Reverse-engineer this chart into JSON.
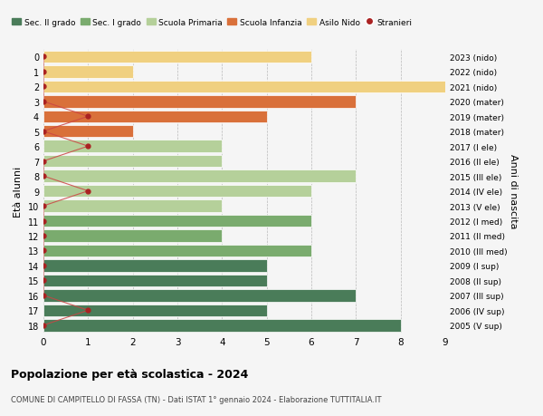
{
  "ages": [
    18,
    17,
    16,
    15,
    14,
    13,
    12,
    11,
    10,
    9,
    8,
    7,
    6,
    5,
    4,
    3,
    2,
    1,
    0
  ],
  "right_labels": [
    "2005 (V sup)",
    "2006 (IV sup)",
    "2007 (III sup)",
    "2008 (II sup)",
    "2009 (I sup)",
    "2010 (III med)",
    "2011 (II med)",
    "2012 (I med)",
    "2013 (V ele)",
    "2014 (IV ele)",
    "2015 (III ele)",
    "2016 (II ele)",
    "2017 (I ele)",
    "2018 (mater)",
    "2019 (mater)",
    "2020 (mater)",
    "2021 (nido)",
    "2022 (nido)",
    "2023 (nido)"
  ],
  "bar_values": [
    8,
    5,
    7,
    5,
    5,
    6,
    4,
    6,
    4,
    6,
    7,
    4,
    4,
    2,
    5,
    7,
    9,
    2,
    6
  ],
  "bar_colors": [
    "#4a7c59",
    "#4a7c59",
    "#4a7c59",
    "#4a7c59",
    "#4a7c59",
    "#7aab6e",
    "#7aab6e",
    "#7aab6e",
    "#b5d09a",
    "#b5d09a",
    "#b5d09a",
    "#b5d09a",
    "#b5d09a",
    "#d9703a",
    "#d9703a",
    "#d9703a",
    "#f0d080",
    "#f0d080",
    "#f0d080"
  ],
  "stranieri_x": [
    0,
    1,
    0,
    0,
    0,
    0,
    0,
    0,
    0,
    1,
    0,
    0,
    1,
    0,
    1,
    0,
    0,
    0,
    0
  ],
  "legend_labels": [
    "Sec. II grado",
    "Sec. I grado",
    "Scuola Primaria",
    "Scuola Infanzia",
    "Asilo Nido",
    "Stranieri"
  ],
  "legend_colors": [
    "#4a7c59",
    "#7aab6e",
    "#b5d09a",
    "#d9703a",
    "#f0d080",
    "#aa2222"
  ],
  "ylabel": "Età alunni",
  "right_ylabel": "Anni di nascita",
  "title": "Popolazione per età scolastica - 2024",
  "subtitle": "COMUNE DI CAMPITELLO DI FASSA (TN) - Dati ISTAT 1° gennaio 2024 - Elaborazione TUTTITALIA.IT",
  "xlim": [
    0,
    9
  ],
  "bg_color": "#f5f5f5",
  "stranieri_color": "#aa2222",
  "line_color": "#cc4444"
}
